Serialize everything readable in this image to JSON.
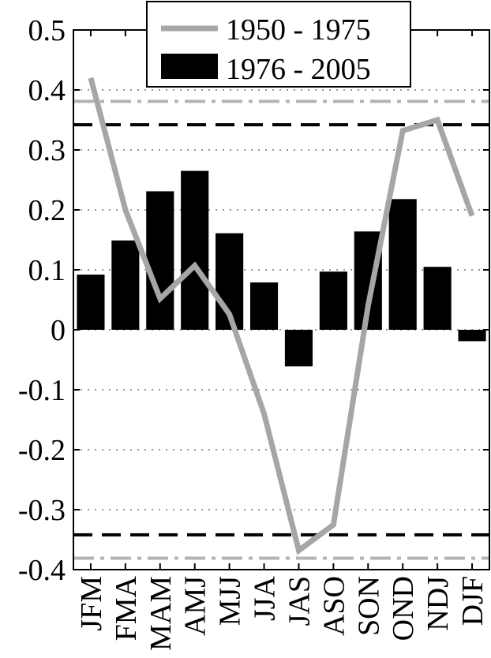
{
  "chart_data": {
    "type": "bar",
    "categories": [
      "JFM",
      "FMA",
      "MAM",
      "AMJ",
      "MJJ",
      "JJA",
      "JAS",
      "ASO",
      "SON",
      "OND",
      "NDJ",
      "DJF"
    ],
    "series": [
      {
        "name": "1976 - 2005",
        "type": "bar",
        "color": "#000000",
        "values": [
          0.092,
          0.149,
          0.231,
          0.265,
          0.161,
          0.079,
          -0.061,
          0.097,
          0.164,
          0.218,
          0.105,
          -0.019
        ]
      },
      {
        "name": "1950 - 1975",
        "type": "line",
        "color": "#a6a6a6",
        "values": [
          0.42,
          0.2,
          0.052,
          0.107,
          0.026,
          -0.14,
          -0.368,
          -0.325,
          0.04,
          0.332,
          0.35,
          0.19
        ]
      }
    ],
    "reference_lines": [
      {
        "value": 0.342,
        "style": "dashed",
        "color": "#000000"
      },
      {
        "value": -0.342,
        "style": "dashed",
        "color": "#000000"
      },
      {
        "value": 0.381,
        "style": "dash-dot",
        "color": "#b3b3b3"
      },
      {
        "value": -0.381,
        "style": "dash-dot",
        "color": "#b3b3b3"
      }
    ],
    "yticks": [
      "0.5",
      "0.4",
      "0.3",
      "0.2",
      "0.1",
      "0",
      "-0.1",
      "-0.2",
      "-0.3",
      "-0.4"
    ],
    "ylim": [
      -0.4,
      0.5
    ],
    "grid": "horizontal dotted",
    "legend_position": "top-center",
    "xlabel": "",
    "ylabel": "",
    "title": ""
  }
}
